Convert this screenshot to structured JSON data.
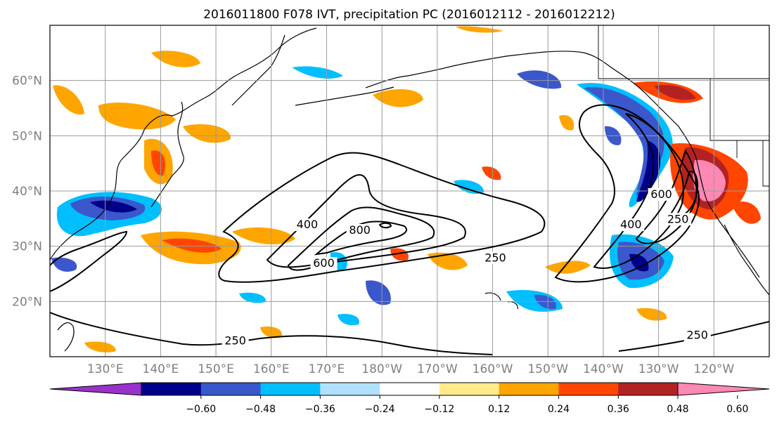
{
  "title": "2016011800 F078 IVT, precipitation PC (2016012112 - 2016012212)",
  "map": {
    "projection": "PlateCarree",
    "lon_range": [
      120,
      250
    ],
    "lat_range": [
      10,
      70
    ],
    "lat_ticks": [
      {
        "value": 20,
        "label": "20°N"
      },
      {
        "value": 30,
        "label": "30°N"
      },
      {
        "value": 40,
        "label": "40°N"
      },
      {
        "value": 50,
        "label": "50°N"
      },
      {
        "value": 60,
        "label": "60°N"
      }
    ],
    "lon_ticks": [
      {
        "value": 130,
        "label": "130°E"
      },
      {
        "value": 140,
        "label": "140°E"
      },
      {
        "value": 150,
        "label": "150°E"
      },
      {
        "value": 160,
        "label": "160°E"
      },
      {
        "value": 170,
        "label": "170°E"
      },
      {
        "value": 180,
        "label": "180°W"
      },
      {
        "value": 190,
        "label": "170°W"
      },
      {
        "value": 200,
        "label": "160°W"
      },
      {
        "value": 210,
        "label": "150°W"
      },
      {
        "value": 220,
        "label": "140°W"
      },
      {
        "value": 230,
        "label": "130°W"
      },
      {
        "value": 240,
        "label": "120°W"
      }
    ],
    "grid": true,
    "ivt_contour_levels": [
      250,
      400,
      600,
      800
    ],
    "ivt_contour_labels": [
      {
        "text": "250",
        "lon": 200.5,
        "lat": 27.5
      },
      {
        "text": "400",
        "lon": 166.5,
        "lat": 33.5
      },
      {
        "text": "600",
        "lon": 169.5,
        "lat": 26.5
      },
      {
        "text": "800",
        "lon": 176,
        "lat": 32.5
      },
      {
        "text": "250",
        "lon": 153.5,
        "lat": 12.5
      },
      {
        "text": "250",
        "lon": 237,
        "lat": 13.5
      },
      {
        "text": "400",
        "lon": 225,
        "lat": 33.5
      },
      {
        "text": "600",
        "lon": 230.5,
        "lat": 39
      },
      {
        "text": "250",
        "lon": 233.5,
        "lat": 34.5
      }
    ]
  },
  "colorbar": {
    "ticks": [
      "−0.60",
      "−0.48",
      "−0.36",
      "−0.24",
      "−0.12",
      "0.12",
      "0.24",
      "0.36",
      "0.48",
      "0.60"
    ],
    "colors": [
      "#9932cc",
      "#00008b",
      "#3a57cc",
      "#00bfff",
      "#b0e2ff",
      "#ffffff",
      "#ffeb8a",
      "#ffa500",
      "#ff4500",
      "#b22222",
      "#ff88b4"
    ]
  }
}
